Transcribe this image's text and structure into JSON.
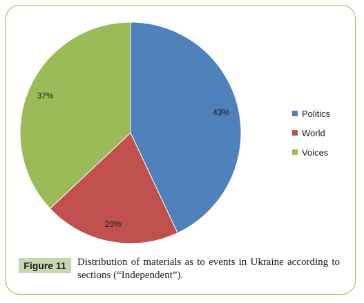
{
  "chart_data": {
    "type": "pie",
    "slices": [
      {
        "name": "Politics",
        "value": 43,
        "label": "43%",
        "color": "#4f81bd"
      },
      {
        "name": "World",
        "value": 20,
        "label": "20%",
        "color": "#c0504d"
      },
      {
        "name": "Voices",
        "value": 37,
        "label": "37%",
        "color": "#9bbb59"
      }
    ],
    "legend_position": "right"
  },
  "figure": {
    "badge": "Figure 11",
    "caption": "Distribution of materials as to events in Ukraine according to sections (“Independent”)."
  }
}
